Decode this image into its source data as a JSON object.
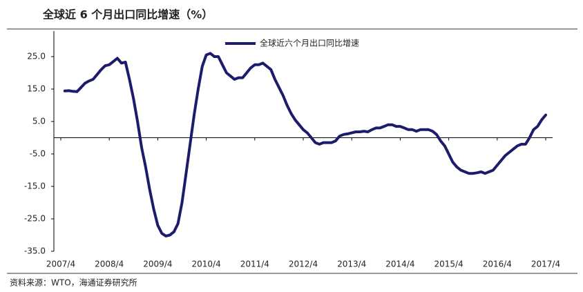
{
  "chart_data": {
    "type": "line",
    "title": "全球近 6 个月出口同比增速（%）",
    "source": "资料来源：WTO，海通证券研究所",
    "x": [
      "2007/5",
      "2007/6",
      "2007/7",
      "2007/8",
      "2007/9",
      "2007/10",
      "2007/11",
      "2007/12",
      "2008/1",
      "2008/2",
      "2008/3",
      "2008/4",
      "2008/5",
      "2008/6",
      "2008/7",
      "2008/8",
      "2008/9",
      "2008/10",
      "2008/11",
      "2008/12",
      "2009/1",
      "2009/2",
      "2009/3",
      "2009/4",
      "2009/5",
      "2009/6",
      "2009/7",
      "2009/8",
      "2009/9",
      "2009/10",
      "2009/11",
      "2009/12",
      "2010/1",
      "2010/2",
      "2010/3",
      "2010/4",
      "2010/5",
      "2010/6",
      "2010/7",
      "2010/8",
      "2010/9",
      "2010/10",
      "2010/11",
      "2010/12",
      "2011/1",
      "2011/2",
      "2011/3",
      "2011/4",
      "2011/5",
      "2011/6",
      "2011/7",
      "2011/8",
      "2011/9",
      "2011/10",
      "2011/11",
      "2011/12",
      "2012/1",
      "2012/2",
      "2012/3",
      "2012/4",
      "2012/5",
      "2012/6",
      "2012/7",
      "2012/8",
      "2012/9",
      "2012/10",
      "2012/11",
      "2012/12",
      "2013/1",
      "2013/2",
      "2013/3",
      "2013/4",
      "2013/5",
      "2013/6",
      "2013/7",
      "2013/8",
      "2013/9",
      "2013/10",
      "2013/11",
      "2013/12",
      "2014/1",
      "2014/2",
      "2014/3",
      "2014/4",
      "2014/5",
      "2014/6",
      "2014/7",
      "2014/8",
      "2014/9",
      "2014/10",
      "2014/11",
      "2014/12",
      "2015/1",
      "2015/2",
      "2015/3",
      "2015/4",
      "2015/5",
      "2015/6",
      "2015/7",
      "2015/8",
      "2015/9",
      "2015/10",
      "2015/11",
      "2015/12",
      "2016/1",
      "2016/2",
      "2016/3",
      "2016/4",
      "2016/5",
      "2016/6",
      "2016/7",
      "2016/8",
      "2016/9",
      "2016/10",
      "2016/11",
      "2016/12",
      "2017/1",
      "2017/2",
      "2017/3",
      "2017/4"
    ],
    "series": [
      {
        "name": "全球近六个月出口同比增速",
        "color": "#1c1c6b",
        "values": [
          14.4,
          14.5,
          14.3,
          14.2,
          15.5,
          16.8,
          17.5,
          18.0,
          19.5,
          21.0,
          22.2,
          22.5,
          23.5,
          24.5,
          23.0,
          23.3,
          18.0,
          12.0,
          5.0,
          -3.0,
          -9.0,
          -16.0,
          -22.0,
          -27.0,
          -29.5,
          -30.3,
          -30.0,
          -29.0,
          -26.5,
          -20.0,
          -11.0,
          -2.0,
          7.0,
          15.0,
          22.0,
          25.5,
          26.0,
          25.0,
          25.0,
          22.5,
          20.0,
          19.0,
          18.0,
          18.5,
          18.5,
          20.0,
          21.5,
          22.5,
          22.5,
          23.0,
          22.0,
          21.0,
          18.0,
          15.5,
          13.0,
          10.0,
          7.5,
          5.5,
          4.0,
          2.5,
          1.5,
          0.0,
          -1.5,
          -2.0,
          -1.5,
          -1.5,
          -1.5,
          -1.0,
          0.5,
          1.0,
          1.2,
          1.5,
          1.8,
          1.8,
          2.0,
          1.8,
          2.5,
          3.0,
          3.0,
          3.5,
          4.0,
          4.0,
          3.5,
          3.5,
          3.0,
          2.5,
          2.5,
          2.0,
          2.5,
          2.5,
          2.5,
          2.0,
          1.0,
          -1.0,
          -2.5,
          -5.0,
          -7.5,
          -9.0,
          -10.0,
          -10.5,
          -11.0,
          -11.0,
          -10.8,
          -10.5,
          -11.0,
          -10.5,
          -10.0,
          -8.5,
          -7.0,
          -5.5,
          -4.5,
          -3.5,
          -2.5,
          -2.0,
          -2.0,
          0.0,
          2.5,
          3.5,
          5.5,
          7.0
        ]
      }
    ],
    "xticks": [
      "2007/4",
      "2008/4",
      "2009/4",
      "2010/4",
      "2011/4",
      "2012/4",
      "2013/4",
      "2014/4",
      "2015/4",
      "2016/4",
      "2017/4"
    ],
    "ylim": [
      -35,
      30
    ],
    "yticks": [
      {
        "value": -35,
        "label": "-35.0"
      },
      {
        "value": -25,
        "label": "-25.0"
      },
      {
        "value": -15,
        "label": "-15.0"
      },
      {
        "value": -5,
        "label": "-5.0"
      },
      {
        "value": 5,
        "label": "5.0"
      },
      {
        "value": 15,
        "label": "15.0"
      },
      {
        "value": 25,
        "label": "25.0"
      }
    ],
    "legend": "top"
  }
}
